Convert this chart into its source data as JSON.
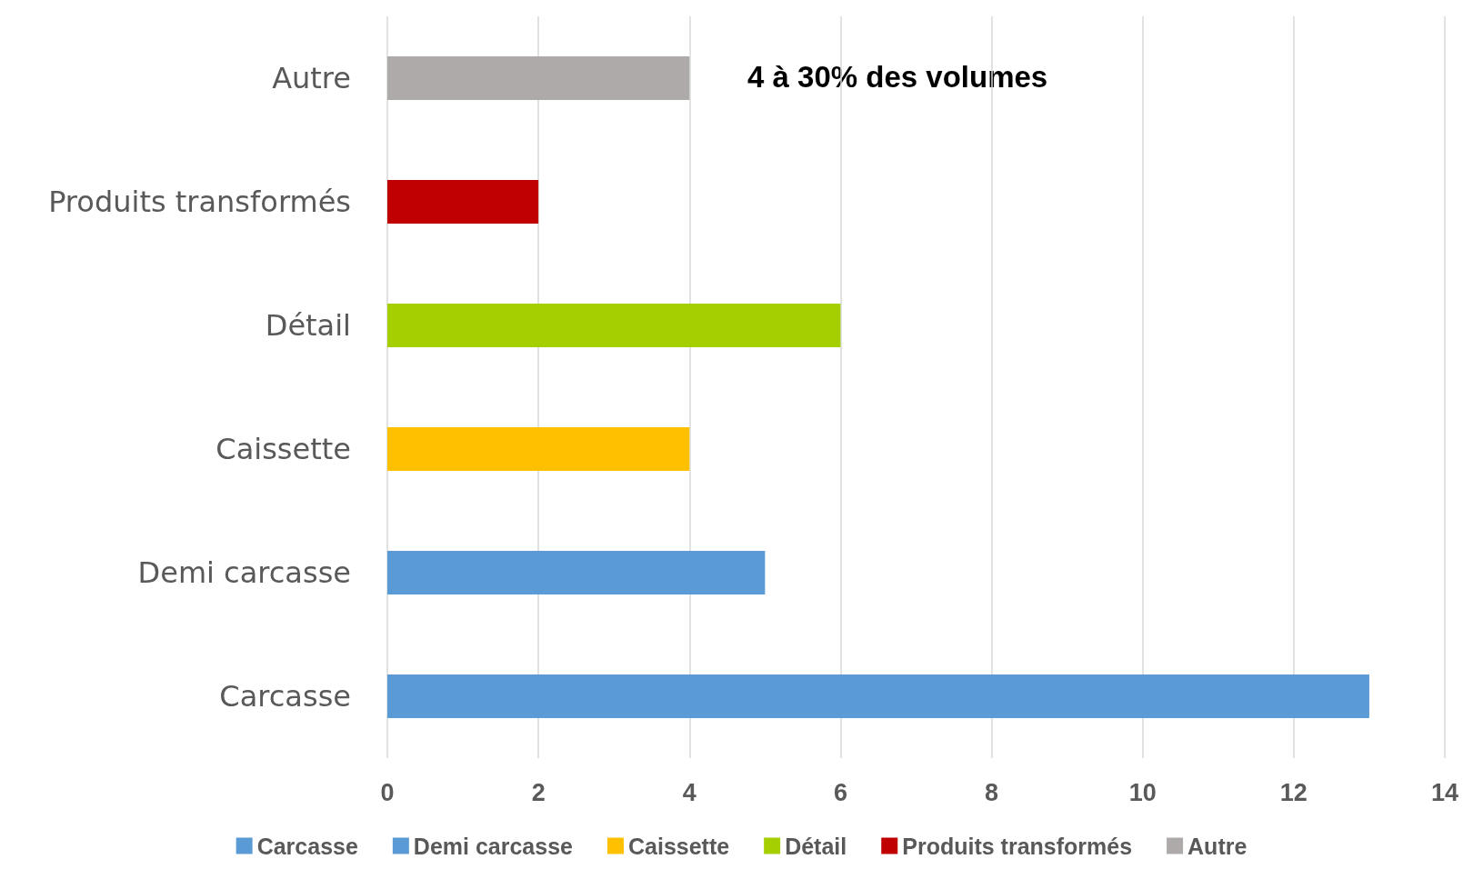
{
  "chart_data": {
    "type": "bar",
    "orientation": "horizontal",
    "stacked": true,
    "categories": [
      "Autre",
      "Produits transformés",
      "Détail",
      "Caissette",
      "Demi carcasse",
      "Carcasse"
    ],
    "series": [
      {
        "name": "Carcasse",
        "color": "#5b9bd5",
        "values": [
          null,
          null,
          null,
          null,
          null,
          13
        ]
      },
      {
        "name": "Demi carcasse",
        "color": "#5b9bd5",
        "values": [
          null,
          null,
          null,
          null,
          5,
          null
        ]
      },
      {
        "name": "Caissette",
        "color": "#ffc000",
        "values": [
          null,
          null,
          null,
          4,
          null,
          null
        ]
      },
      {
        "name": "Détail",
        "color": "#a5cf00",
        "values": [
          null,
          null,
          6,
          null,
          null,
          null
        ]
      },
      {
        "name": "Produits transformés",
        "color": "#c00000",
        "values": [
          null,
          2,
          null,
          null,
          null,
          null
        ]
      },
      {
        "name": "Autre",
        "color": "#aeaaaa",
        "values": [
          4,
          null,
          null,
          null,
          null,
          null
        ]
      }
    ],
    "xlim": [
      0,
      14
    ],
    "xticks": [
      0,
      2,
      4,
      6,
      8,
      10,
      12,
      14
    ],
    "grid": "x",
    "legend": "bottom",
    "annotations": [
      "4 à 30% des volumes"
    ]
  }
}
